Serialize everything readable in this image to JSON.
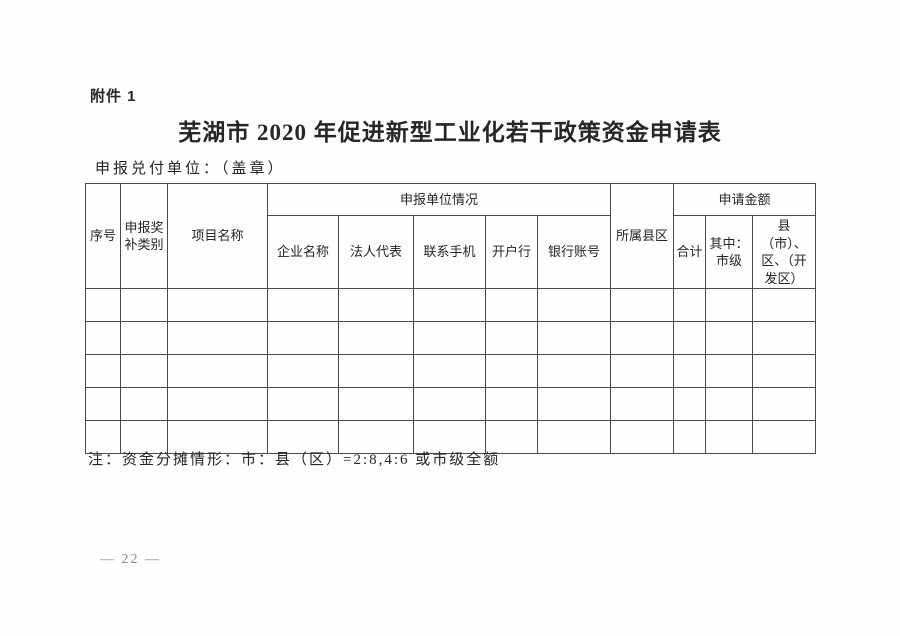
{
  "page": {
    "attachment_label": "附件 1",
    "title": "芜湖市 2020 年促进新型工业化若干政策资金申请表",
    "declare_unit_label": "申报兑付单位：（盖章）",
    "note": "注：资金分摊情形：市：县（区）=2:8,4:6 或市级全额",
    "page_number": "— 22 —"
  },
  "table": {
    "headers": {
      "serial": "序号",
      "award_category": "申报奖补类别",
      "project_name": "项目名称",
      "unit_info_group": "申报单位情况",
      "enterprise_name": "企业名称",
      "legal_rep": "法人代表",
      "contact_phone": "联系手机",
      "bank_branch": "开户行",
      "bank_account": "银行账号",
      "county_district": "所属县区",
      "amount_group": "申请金额",
      "amount_total": "合计",
      "amount_municipal": "其中：市级",
      "amount_county": "县（市）、区、（开发区）"
    },
    "empty_rows": 5,
    "columns_count": 12
  },
  "colors": {
    "grid_line": "#4a4a4a",
    "text": "#262626",
    "page_number_gray": "#8a8a8a",
    "background": "#ffffff"
  }
}
